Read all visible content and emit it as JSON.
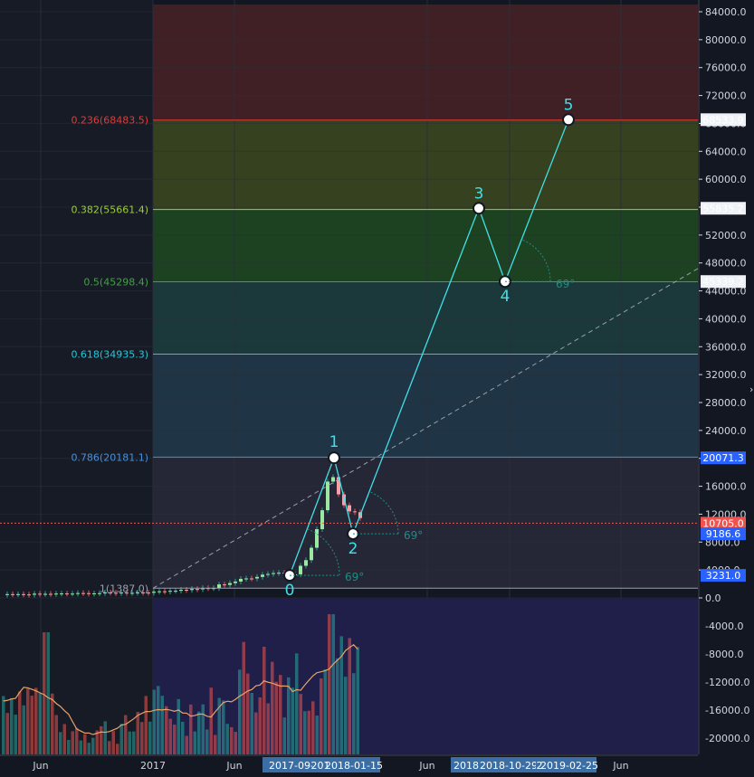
{
  "chart_data": {
    "type": "candlestick",
    "instrument": "BTCUSD",
    "price_axis": {
      "ticks": [
        "84000.0",
        "80000.0",
        "76000.0",
        "72000.0",
        "68000.0",
        "64000.0",
        "60000.0",
        "56000.0",
        "52000.0",
        "48000.0",
        "44000.0",
        "40000.0",
        "36000.0",
        "32000.0",
        "28000.0",
        "24000.0",
        "20000.0",
        "16000.0",
        "12000.0",
        "8000.0",
        "4000.0",
        "0.0"
      ],
      "ylim": [
        -1000,
        85000
      ]
    },
    "volume_axis": {
      "ticks": [
        "-4000.0",
        "-8000.0",
        "-12000.0",
        "-16000.0",
        "-20000.0"
      ]
    },
    "time_axis": {
      "ticks": [
        "Jun",
        "2017",
        "Jun",
        "Jun",
        "Jun"
      ]
    },
    "fib_levels": [
      {
        "ratio": 1,
        "price": 1387.0,
        "label": "1(1387.0)",
        "color": "#9aa0ab"
      },
      {
        "ratio": 0.786,
        "price": 20181.1,
        "label": "0.786(20181.1)",
        "color": "#4a90d9"
      },
      {
        "ratio": 0.618,
        "price": 34935.3,
        "label": "0.618(34935.3)",
        "color": "#26c6da"
      },
      {
        "ratio": 0.5,
        "price": 45298.4,
        "label": "0.5(45298.4)",
        "color": "#43a047"
      },
      {
        "ratio": 0.382,
        "price": 55661.4,
        "label": "0.382(55661.4)",
        "color": "#9ccc3a"
      },
      {
        "ratio": 0.236,
        "price": 68483.5,
        "label": "0.236(68483.5)",
        "color": "#e53935"
      }
    ],
    "fib_zone_colors": [
      "#2a2a3a",
      "#223a4a",
      "#1d4040",
      "#1e4a22",
      "#3d4a1e",
      "#4a2226"
    ],
    "waves": [
      {
        "label": "0",
        "date": "2017-09",
        "price": 3231.0
      },
      {
        "label": "1",
        "date": "2017-12",
        "price": 20071.3
      },
      {
        "label": "2",
        "date": "2018-01",
        "price": 9186.6
      },
      {
        "label": "3",
        "date": "2018-08",
        "price": 55835.2
      },
      {
        "label": "4",
        "date": "2018-10-29",
        "price": 45339.2
      },
      {
        "label": "5",
        "date": "2019-02-25",
        "price": 68533.9
      }
    ],
    "angle_marks": [
      "69°",
      "69°",
      "69°"
    ],
    "price_tags": [
      {
        "text": "68533.9",
        "price": 68533.9,
        "bg": "#eef2f7",
        "fg": "#131722"
      },
      {
        "text": "55835.2",
        "price": 55835.2,
        "bg": "#eef2f7",
        "fg": "#131722"
      },
      {
        "text": "45339.2",
        "price": 45339.2,
        "bg": "#eef2f7",
        "fg": "#131722"
      },
      {
        "text": "20071.3",
        "price": 20071.3,
        "bg": "#2962ff",
        "fg": "#ffffff"
      },
      {
        "text": "10705.0",
        "price": 10705.0,
        "bg": "#ef5350",
        "fg": "#ffffff"
      },
      {
        "text": "9186.6",
        "price": 9186.6,
        "bg": "#2962ff",
        "fg": "#ffffff"
      },
      {
        "text": "3231.0",
        "price": 3231.0,
        "bg": "#2962ff",
        "fg": "#ffffff"
      }
    ],
    "date_tags": [
      "2017-09-",
      "201",
      "2018-01-15",
      "2018",
      "2018-10-29",
      "2",
      "2019-02-25"
    ],
    "price_series": [
      {
        "date": "2017-01",
        "close": 1000
      },
      {
        "date": "2017-03",
        "close": 1100
      },
      {
        "date": "2017-05",
        "close": 1800
      },
      {
        "date": "2017-06",
        "close": 2600
      },
      {
        "date": "2017-07",
        "close": 2700
      },
      {
        "date": "2017-08",
        "close": 4500
      },
      {
        "date": "2017-09",
        "close": 3800
      },
      {
        "date": "2017-10",
        "close": 5800
      },
      {
        "date": "2017-11",
        "close": 8000
      },
      {
        "date": "2017-12",
        "close": 19000
      },
      {
        "date": "2018-01",
        "close": 11000
      }
    ],
    "colors": {
      "background": "#131722",
      "history_background": "#171b26",
      "wave_line": "#40e0e8",
      "up_candle": "#26a69a",
      "down_candle": "#ef5350",
      "volume_ma": "#e8a36a",
      "current_price_line": "#ef5350"
    }
  }
}
